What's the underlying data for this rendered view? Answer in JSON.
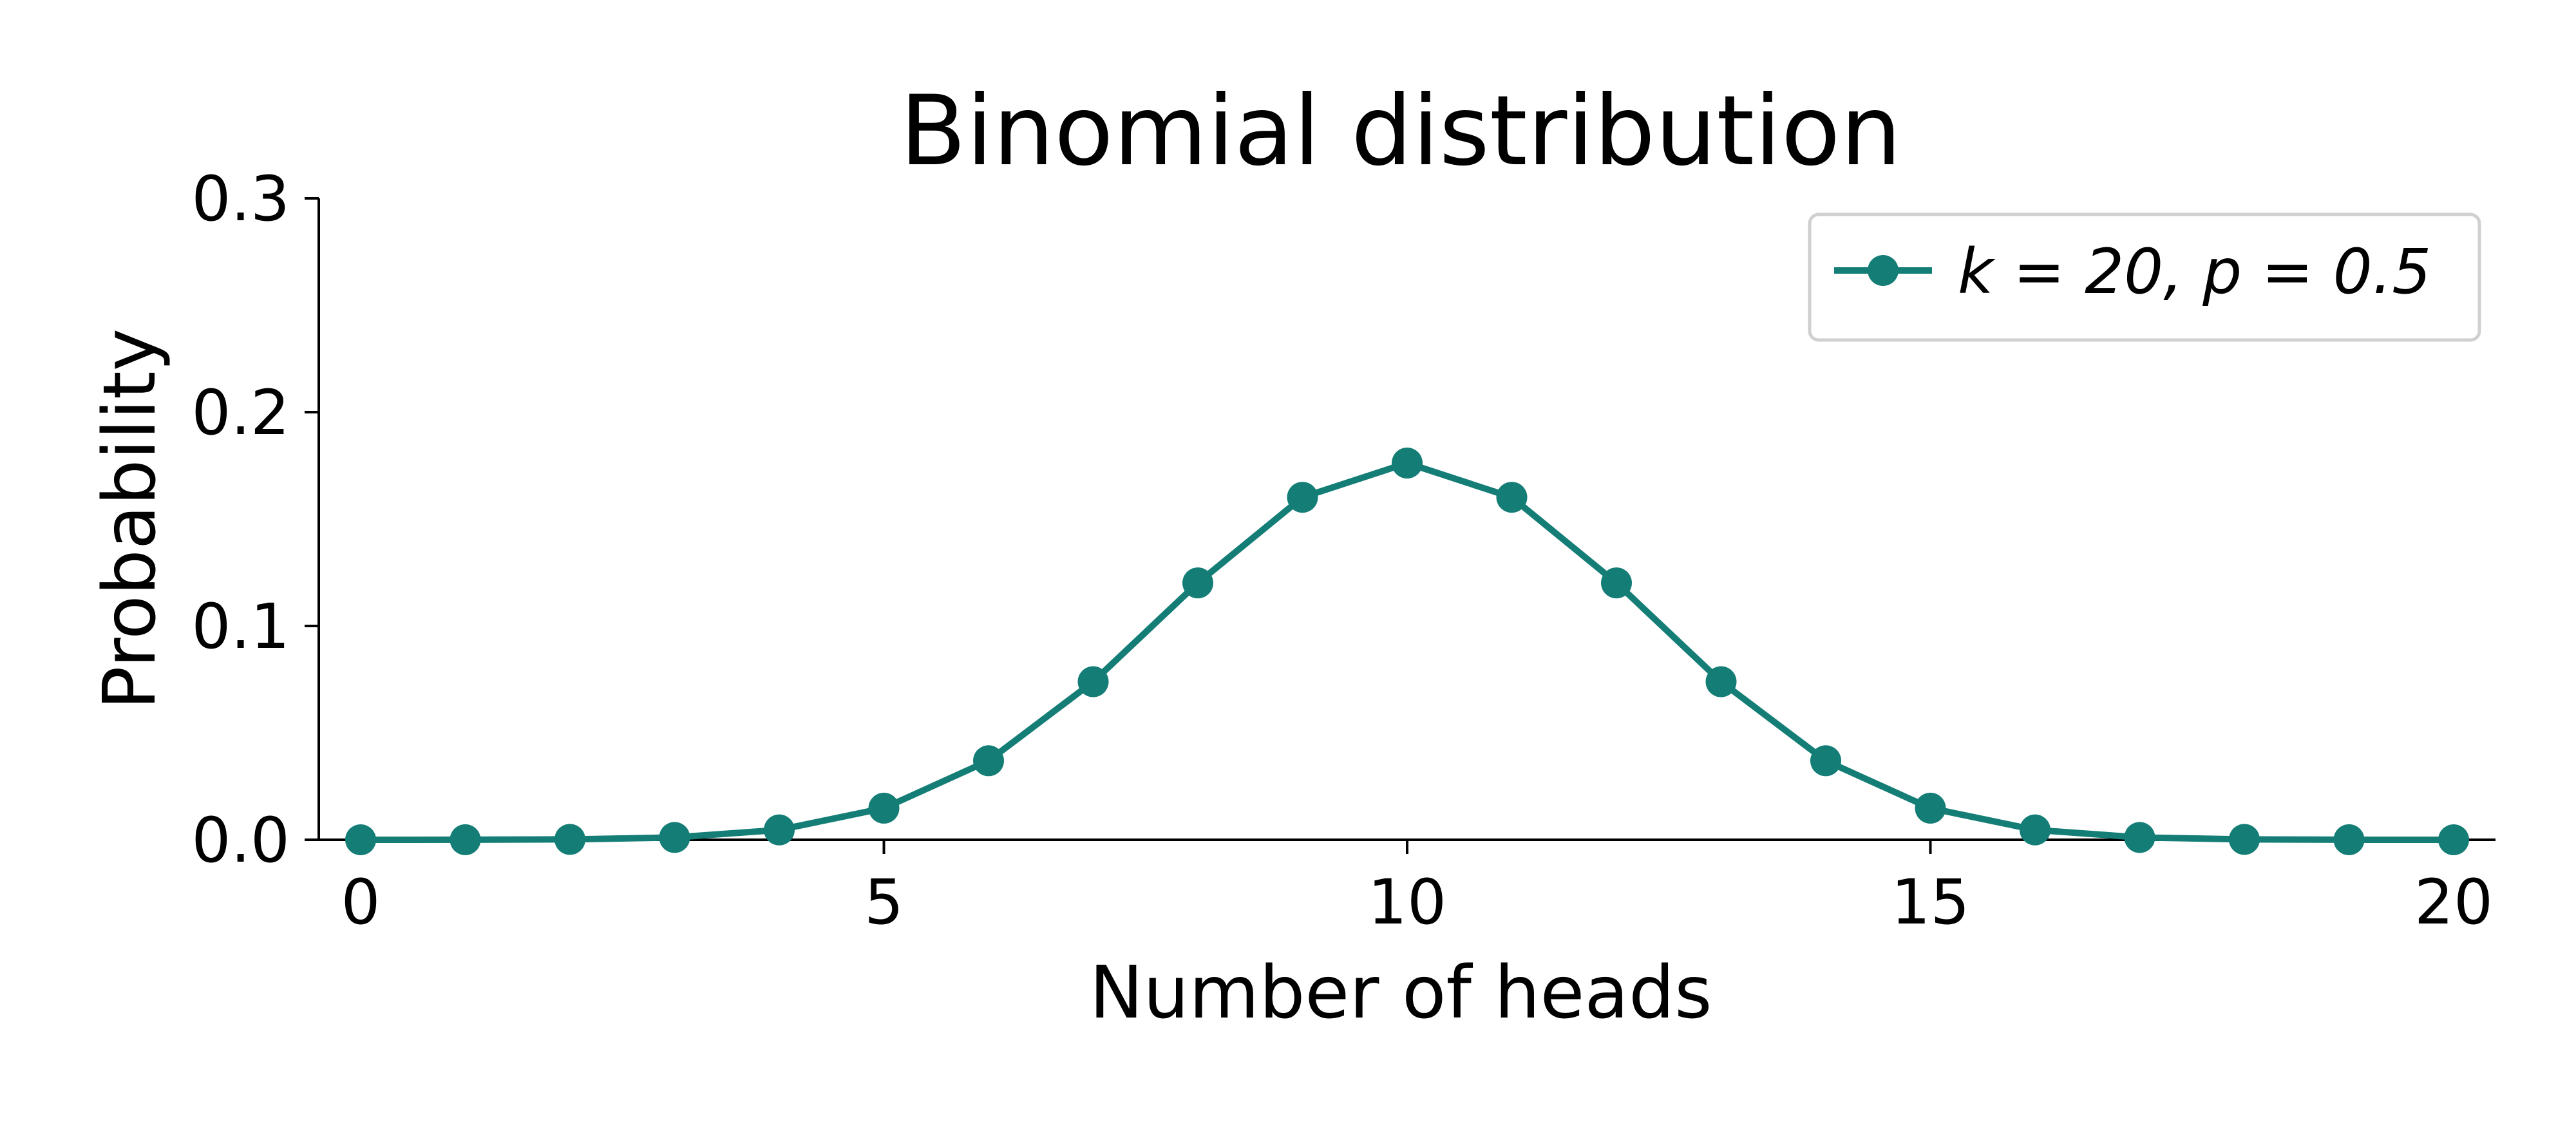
{
  "colors": {
    "series": "#137d76",
    "axis": "#000000",
    "legend_border": "#d0d0d0"
  },
  "chart_data": {
    "type": "line",
    "title": "Binomial distribution",
    "xlabel": "Number of heads",
    "ylabel": "Probability",
    "xlim": [
      -0.4,
      20.4
    ],
    "ylim": [
      0,
      0.3
    ],
    "x_ticks": [
      0,
      5,
      10,
      15,
      20
    ],
    "x_tick_labels": [
      "0",
      "5",
      "10",
      "15",
      "20"
    ],
    "y_ticks": [
      0,
      0.1,
      0.2,
      0.3
    ],
    "y_tick_labels": [
      "0.0",
      "0.1",
      "0.2",
      "0.3"
    ],
    "grid": false,
    "legend_position": "top-right",
    "series": [
      {
        "name": "k = 20, p = 0.5",
        "marker": "circle",
        "x": [
          0,
          1,
          2,
          3,
          4,
          5,
          6,
          7,
          8,
          9,
          10,
          11,
          12,
          13,
          14,
          15,
          16,
          17,
          18,
          19,
          20
        ],
        "values": [
          1e-06,
          1.9e-05,
          0.000181,
          0.001087,
          0.004621,
          0.014786,
          0.036964,
          0.073929,
          0.120134,
          0.160179,
          0.176197,
          0.160179,
          0.120134,
          0.073929,
          0.036964,
          0.014786,
          0.004621,
          0.001087,
          0.000181,
          1.9e-05,
          1e-06
        ]
      }
    ]
  }
}
